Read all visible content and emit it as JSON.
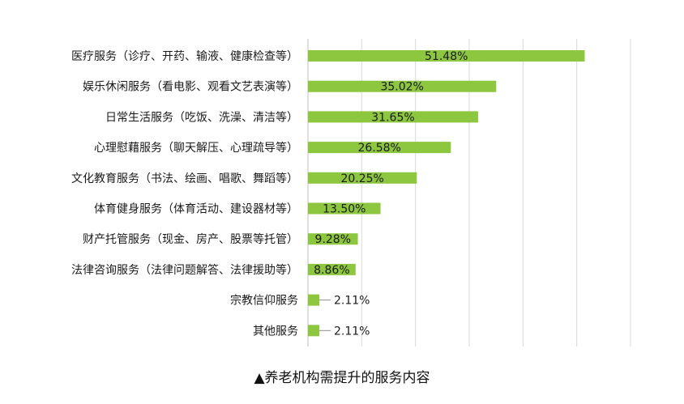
{
  "chart_data": {
    "type": "bar",
    "orientation": "horizontal",
    "categories": [
      "医疗服务（诊疗、开药、输液、健康检查等）",
      "娱乐休闲服务（看电影、观看文艺表演等）",
      "日常生活服务（吃饭、洗澡、清洁等）",
      "心理慰藉服务（聊天解压、心理疏导等）",
      "文化教育服务（书法、绘画、唱歌、舞蹈等）",
      "体育健身服务（体育活动、建设器材等）",
      "财产托管服务（现金、房产、股票等托管）",
      "法律咨询服务（法律问题解答、法律援助等）",
      "宗教信仰服务",
      "其他服务"
    ],
    "values": [
      51.48,
      35.02,
      31.65,
      26.58,
      20.25,
      13.5,
      9.28,
      8.86,
      2.11,
      2.11
    ],
    "value_labels": [
      "51.48%",
      "35.02%",
      "31.65%",
      "26.58%",
      "20.25%",
      "13.50%",
      "9.28%",
      "8.86%",
      "2.11%",
      "2.11%"
    ],
    "xlim": [
      0,
      60
    ],
    "grid": "vertical",
    "bar_color": "#8dc63f",
    "grid_color": "#d9d9d9",
    "axis_color": "#bfbfbf",
    "title": "▲养老机构需提升的服务内容"
  }
}
